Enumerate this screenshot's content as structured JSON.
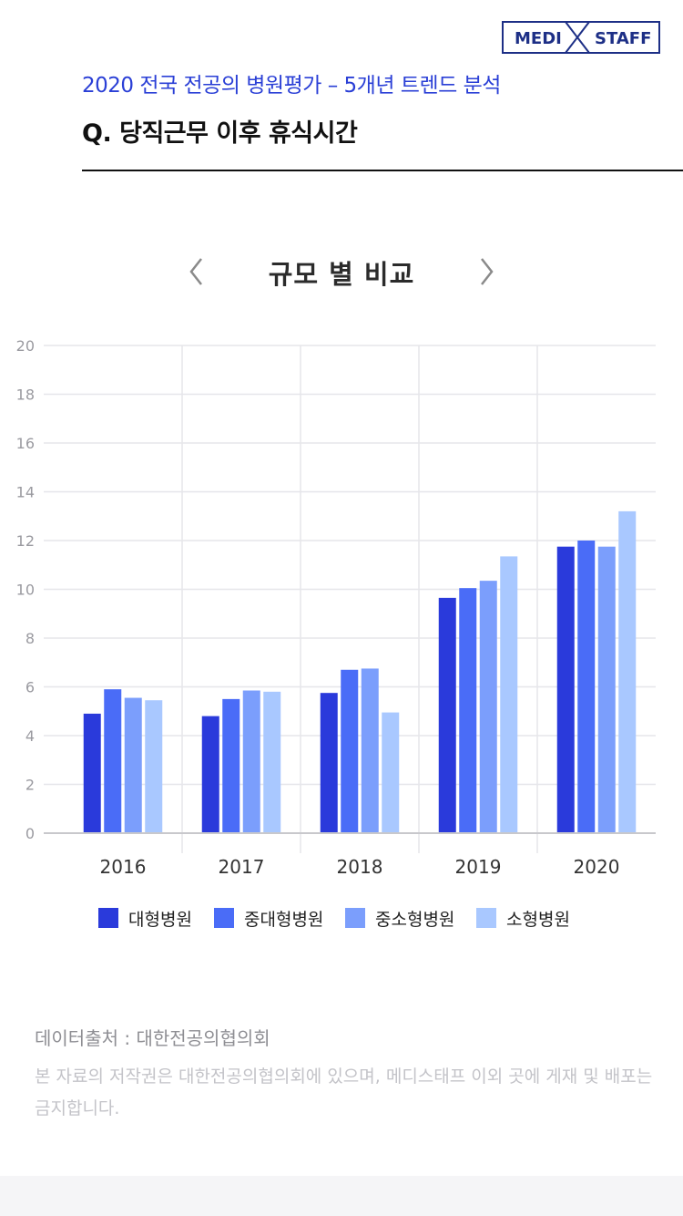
{
  "logo": {
    "left_text": "MEDI",
    "right_text": "STAFF",
    "brand_color": "#1d2f86"
  },
  "header": {
    "subtitle": "2020 전국 전공의 병원평가 – 5개년 트렌드 분석",
    "question": "Q. 당직근무 이후 휴식시간"
  },
  "chart_nav": {
    "title": "규모 별 비교",
    "prev_icon": "chevron-left-icon",
    "next_icon": "chevron-right-icon"
  },
  "chart_data": {
    "type": "bar",
    "categories": [
      "2016",
      "2017",
      "2018",
      "2019",
      "2020"
    ],
    "ylim": [
      0,
      20
    ],
    "yticks": [
      0,
      2,
      4,
      6,
      8,
      10,
      12,
      14,
      16,
      18,
      20
    ],
    "grid": true,
    "legend_position": "bottom",
    "series": [
      {
        "name": "대형병원",
        "color": "#2a3adb",
        "values": [
          4.9,
          4.8,
          5.75,
          9.65,
          11.75
        ]
      },
      {
        "name": "중대형병원",
        "color": "#4a6cf7",
        "values": [
          5.9,
          5.5,
          6.7,
          10.05,
          12.0
        ]
      },
      {
        "name": "중소형병원",
        "color": "#7b9efc",
        "values": [
          5.55,
          5.85,
          6.75,
          10.35,
          11.75
        ]
      },
      {
        "name": "소형병원",
        "color": "#a9c8ff",
        "values": [
          5.45,
          5.8,
          4.95,
          11.35,
          13.2
        ]
      }
    ]
  },
  "footer": {
    "source": "데이터출처 : 대한전공의협의회",
    "notice": "본 자료의 저작권은 대한전공의협의회에 있으며, 메디스태프 이외 곳에 게재 및 배포는 금지합니다."
  }
}
